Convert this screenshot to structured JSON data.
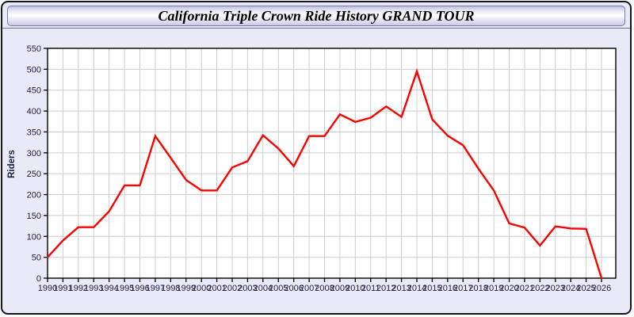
{
  "window": {
    "title": "California Triple Crown Ride History GRAND TOUR"
  },
  "chart_data": {
    "type": "line",
    "title": "California Triple Crown Ride History GRAND TOUR",
    "xlabel": "",
    "ylabel": "Riders",
    "x": [
      1990,
      1991,
      1992,
      1993,
      1994,
      1995,
      1996,
      1997,
      1998,
      1999,
      2000,
      2001,
      2002,
      2003,
      2004,
      2005,
      2006,
      2007,
      2008,
      2009,
      2010,
      2011,
      2012,
      2013,
      2014,
      2015,
      2016,
      2017,
      2018,
      2019,
      2020,
      2021,
      2022,
      2023,
      2024,
      2025,
      2026
    ],
    "values": [
      50,
      90,
      122,
      122,
      160,
      222,
      222,
      340,
      288,
      235,
      210,
      210,
      265,
      280,
      342,
      310,
      268,
      340,
      340,
      392,
      374,
      384,
      411,
      386,
      495,
      380,
      341,
      318,
      262,
      210,
      131,
      121,
      78,
      124,
      119,
      118,
      0
    ],
    "series_name": "Riders",
    "ylim": [
      0,
      550
    ],
    "ytick_step": 50,
    "grid": true,
    "legend": "none",
    "line_color": "#ff0000",
    "grid_color": "#cccccc",
    "axis_color": "#000000",
    "plot_bg": "#ffffff",
    "label_color": "#1f1f42"
  },
  "colors": {
    "window_bg": "#e9e9f8",
    "window_border": "#15151f",
    "titlebar_border": "#7a7aa8",
    "divider": "#6e6e90"
  }
}
